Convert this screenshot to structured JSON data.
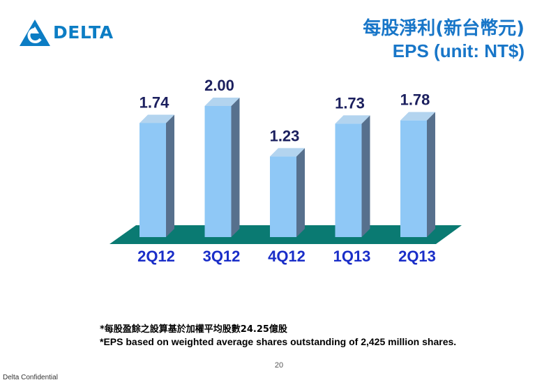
{
  "header": {
    "logo_text": "DELTA",
    "title_zh": "每股淨利(新台幣元)",
    "title_en": "EPS (unit: NT$)"
  },
  "colors": {
    "bar_front": "#8fc8f6",
    "bar_side": "#57708d",
    "bar_top": "#b3d4ef",
    "floor": "#0a7a72",
    "value_label": "#1b1f5e",
    "category_label": "#1a2ec8",
    "title": "#1876c8",
    "logo": "#0c7dc4"
  },
  "chart_data": {
    "type": "bar",
    "categories": [
      "2Q12",
      "3Q12",
      "4Q12",
      "1Q13",
      "2Q13"
    ],
    "values": [
      1.74,
      2.0,
      1.23,
      1.73,
      1.78
    ],
    "value_labels": [
      "1.74",
      "2.00",
      "1.23",
      "1.73",
      "1.78"
    ],
    "title": "EPS (unit: NT$)",
    "xlabel": "",
    "ylabel": "",
    "grid": false,
    "style": "3d-column"
  },
  "footnotes": {
    "zh": "*每股盈餘之設算基於加權平均股數24.25億股",
    "en": "*EPS based on weighted average shares outstanding of 2,425 million shares."
  },
  "footer": {
    "page_number": "20",
    "confidential": "Delta Confidential"
  }
}
